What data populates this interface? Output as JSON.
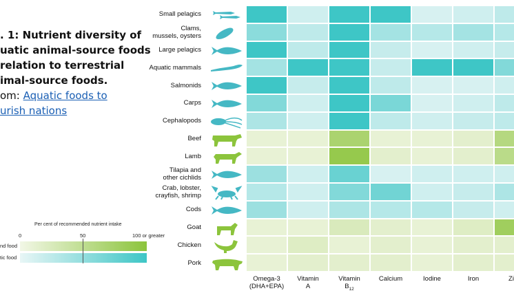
{
  "caption": {
    "lines": [
      ". 1: Nutrient diversity of",
      "uatic animal-source foods",
      "relation to terrestrial",
      "imal-source foods."
    ],
    "from_prefix": "om: ",
    "link_line1": "Aquatic foods to",
    "link_line2": "urish nations"
  },
  "legend": {
    "title": "Per cent of recommended nutrient intake",
    "ticks": [
      "0",
      "50",
      "100 or greater"
    ],
    "terrestrial_label": "nd food",
    "aquatic_label": "tic food"
  },
  "colors": {
    "aquatic_max": "#3ec6c6",
    "aquatic_min": "#e8f6f6",
    "terrestrial_max": "#8cc43c",
    "terrestrial_min": "#f2f7e6"
  },
  "chart_data": {
    "type": "heatmap",
    "categories": [
      "Omega-3\n(DHA+EPA)",
      "Vitamin\nA",
      "Vitamin\nB12",
      "Calcium",
      "Iodine",
      "Iron",
      "Zinc"
    ],
    "value_range": [
      0,
      100
    ],
    "rows": [
      {
        "name": "Small pelagics",
        "group": "aquatic",
        "icon": "small-fish-icon",
        "values": [
          100,
          15,
          100,
          100,
          10,
          15,
          25
        ]
      },
      {
        "name": "Clams,\nmussels, oysters",
        "group": "aquatic",
        "icon": "mussel-icon",
        "values": [
          55,
          25,
          100,
          40,
          30,
          40,
          30
        ]
      },
      {
        "name": "Large pelagics",
        "group": "aquatic",
        "icon": "fish-icon",
        "values": [
          100,
          25,
          100,
          20,
          10,
          15,
          20
        ]
      },
      {
        "name": "Aquatic mammals",
        "group": "aquatic",
        "icon": "seal-icon",
        "values": [
          40,
          100,
          100,
          20,
          100,
          100,
          60
        ]
      },
      {
        "name": "Salmonids",
        "group": "aquatic",
        "icon": "fish-icon",
        "values": [
          100,
          20,
          100,
          25,
          10,
          10,
          15
        ]
      },
      {
        "name": "Carps",
        "group": "aquatic",
        "icon": "fish-icon",
        "values": [
          60,
          15,
          100,
          65,
          10,
          15,
          25
        ]
      },
      {
        "name": "Cephalopods",
        "group": "aquatic",
        "icon": "squid-icon",
        "values": [
          35,
          15,
          100,
          25,
          15,
          20,
          25
        ]
      },
      {
        "name": "Beef",
        "group": "terrestrial",
        "icon": "cow-icon",
        "values": [
          10,
          10,
          70,
          10,
          10,
          15,
          60
        ]
      },
      {
        "name": "Lamb",
        "group": "terrestrial",
        "icon": "sheep-icon",
        "values": [
          10,
          10,
          90,
          15,
          10,
          15,
          55
        ]
      },
      {
        "name": "Tilapia and\nother cichlids",
        "group": "aquatic",
        "icon": "fish-icon",
        "values": [
          45,
          15,
          75,
          10,
          15,
          15,
          15
        ]
      },
      {
        "name": "Crab, lobster,\ncrayfish, shrimp",
        "group": "aquatic",
        "icon": "crab-icon",
        "values": [
          30,
          15,
          60,
          70,
          15,
          20,
          35
        ]
      },
      {
        "name": "Cods",
        "group": "aquatic",
        "icon": "fish-icon",
        "values": [
          45,
          15,
          35,
          30,
          30,
          20,
          15
        ]
      },
      {
        "name": "Goat",
        "group": "terrestrial",
        "icon": "goat-icon",
        "values": [
          10,
          10,
          25,
          15,
          10,
          20,
          80
        ]
      },
      {
        "name": "Chicken",
        "group": "terrestrial",
        "icon": "chicken-icon",
        "values": [
          10,
          20,
          10,
          15,
          10,
          15,
          15
        ]
      },
      {
        "name": "Pork",
        "group": "terrestrial",
        "icon": "pig-icon",
        "values": [
          10,
          15,
          15,
          15,
          10,
          15,
          15
        ]
      }
    ]
  }
}
